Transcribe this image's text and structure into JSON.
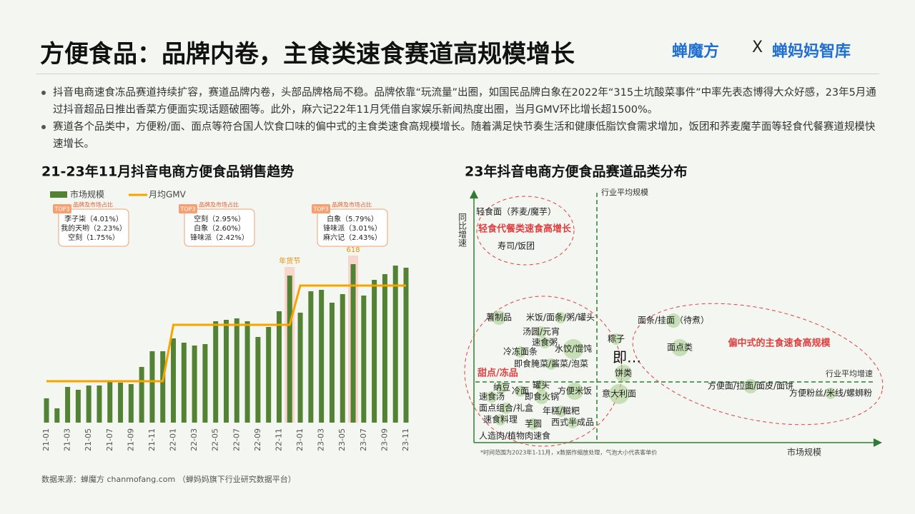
{
  "header": {
    "title": "方便食品：品牌内卷，主食类速食赛道高规模增长",
    "logo_left": "蝉魔方",
    "logo_sep": "X",
    "logo_right": "蝉妈妈智库"
  },
  "bullets": [
    "抖音电商速食冻品赛道持续扩容，赛道品牌内卷，头部品牌格局不稳。品牌依靠“玩流量”出圈，如国民品牌白象在2022年“315土坑酸菜事件”中率先表态博得大众好感，23年5月通过抖音超品日推出香菜方便面实现话题破圈等。此外，麻六记22年11月凭借自家娱乐新闻热度出圈，当月GMV环比增长超1500%。",
    "赛道各个品类中，方便粉/面、面点等符合国人饮食口味的偏中式的主食类速食高规模增长。随着满足快节奏生活和健康低脂饮食需求增加，饭团和荞麦魔芋面等轻食代餐赛道规模快速增长。"
  ],
  "chart_data": [
    {
      "type": "bar",
      "title": "21-23年11月抖音电商方便食品销售趋势",
      "categories": [
        "21-01",
        null,
        "21-03",
        null,
        "21-05",
        null,
        "21-07",
        null,
        "21-09",
        null,
        "21-11",
        null,
        "22-01",
        null,
        "22-03",
        null,
        "22-05",
        null,
        "22-07",
        null,
        "22-09",
        null,
        "22-11",
        null,
        "23-01",
        null,
        "23-03",
        null,
        "23-05",
        null,
        "23-07",
        null,
        "23-09",
        null,
        "23-11"
      ],
      "series": [
        {
          "name": "市场规模",
          "type": "bar",
          "color": "#548235",
          "values": [
            34,
            20,
            50,
            46,
            52,
            52,
            58,
            56,
            54,
            78,
            100,
            100,
            118,
            112,
            108,
            110,
            142,
            144,
            146,
            142,
            120,
            134,
            156,
            206,
            154,
            184,
            186,
            168,
            180,
            222,
            178,
            200,
            208,
            220,
            217
          ]
        },
        {
          "name": "月均GMV",
          "type": "line",
          "color": "#f5a400",
          "values": [
            58,
            58,
            58,
            58,
            58,
            58,
            58,
            58,
            58,
            58,
            58,
            58,
            137,
            137,
            137,
            137,
            137,
            137,
            137,
            137,
            137,
            137,
            137,
            137,
            192,
            192,
            192,
            192,
            192,
            192,
            192,
            192,
            192,
            192,
            192
          ]
        }
      ],
      "ylim": [
        0,
        240
      ],
      "highlights": [
        {
          "index": 23,
          "label": "年货节"
        },
        {
          "index": 29,
          "label": "618"
        }
      ],
      "annotations": [
        {
          "tag": "TOP3",
          "caption": "品牌及市场占比",
          "items": [
            "李子柒（4.01%）",
            "我的天哟（2.23%）",
            "空刻（1.75%）"
          ]
        },
        {
          "tag": "TOP3",
          "caption": "品牌及市场占比",
          "items": [
            "空刻（2.95%）",
            "白象（2.60%）",
            "锋味派（2.42%）"
          ]
        },
        {
          "tag": "TOP3",
          "caption": "品牌及市场占比",
          "items": [
            "白象（5.79%）",
            "锋味派（3.01%）",
            "麻六记（2.43%）"
          ]
        }
      ]
    },
    {
      "type": "scatter",
      "title": "23年抖音电商方便食品赛道品类分布",
      "x_label": "市场规模",
      "y_label": "同比增速",
      "xlim": [
        0,
        560
      ],
      "ylim": [
        0,
        345
      ],
      "x_ref": {
        "value": 170,
        "label": "行业平均规模"
      },
      "y_ref": {
        "value": 85,
        "label": "行业平均增速"
      },
      "color": "#a9d18e",
      "groups": [
        "轻食代餐类速食高增长",
        "甜点/冻品",
        "偏中式的主食速食高规模"
      ],
      "extra": "即…",
      "note": "*时间范围为2023年1-11月，x数据作缩放处理，气泡大小代表客单价",
      "points": [
        {
          "label": "轻食面（荞麦/魔芋）",
          "x": 57,
          "y": 323,
          "size": 0
        },
        {
          "label": "寿司/饭团",
          "x": 57,
          "y": 275,
          "size": 0
        },
        {
          "label": "薯制品",
          "x": 33,
          "y": 175,
          "size": 10
        },
        {
          "label": "米饭/面条/粥/罐头",
          "x": 119,
          "y": 175,
          "size": 8
        },
        {
          "label": "汤圆/元宵",
          "x": 92,
          "y": 155,
          "size": 8
        },
        {
          "label": "速食粥",
          "x": 97,
          "y": 140,
          "size": 8
        },
        {
          "label": "冷冻面条",
          "x": 63,
          "y": 127,
          "size": 8
        },
        {
          "label": "水饺/馄饨",
          "x": 137,
          "y": 131,
          "size": 14
        },
        {
          "label": "即食腌菜/酱菜/泡菜",
          "x": 106,
          "y": 110,
          "size": 8
        },
        {
          "label": "粽子",
          "x": 197,
          "y": 145,
          "size": 8
        },
        {
          "label": "饼类",
          "x": 207,
          "y": 97,
          "size": 12
        },
        {
          "label": "纳豆",
          "x": 37,
          "y": 77,
          "size": 8
        },
        {
          "label": "冷面",
          "x": 63,
          "y": 72,
          "size": 8
        },
        {
          "label": "罐头",
          "x": 92,
          "y": 80,
          "size": 8
        },
        {
          "label": "即食火锅",
          "x": 93,
          "y": 64,
          "size": 10
        },
        {
          "label": "方便米饭",
          "x": 139,
          "y": 72,
          "size": 12
        },
        {
          "label": "速食汤",
          "x": 23,
          "y": 64,
          "size": 8
        },
        {
          "label": "意大利面",
          "x": 201,
          "y": 68,
          "size": 14
        },
        {
          "label": "面点组合/礼盒",
          "x": 43,
          "y": 48,
          "size": 8
        },
        {
          "label": "年糕/糍粑",
          "x": 120,
          "y": 44,
          "size": 8
        },
        {
          "label": "速食料理",
          "x": 35,
          "y": 32,
          "size": 8
        },
        {
          "label": "芋圆",
          "x": 81,
          "y": 26,
          "size": 8
        },
        {
          "label": "西式半成品",
          "x": 136,
          "y": 28,
          "size": 8
        },
        {
          "label": "人造肉/植物肉速食",
          "x": 55,
          "y": 9,
          "size": 0
        },
        {
          "label": "面条/挂面（待煮）",
          "x": 277,
          "y": 171,
          "size": 10
        },
        {
          "label": "面点类",
          "x": 286,
          "y": 133,
          "size": 12
        },
        {
          "label": "方便面/拉面/面皮/面饼",
          "x": 385,
          "y": 79,
          "size": 10
        },
        {
          "label": "方便粉丝/米线/螺蛳粉",
          "x": 497,
          "y": 69,
          "size": 8
        }
      ]
    }
  ],
  "source": "数据来源：蝉魔方 chanmofang.com （蝉妈妈旗下行业研究数据平台）"
}
